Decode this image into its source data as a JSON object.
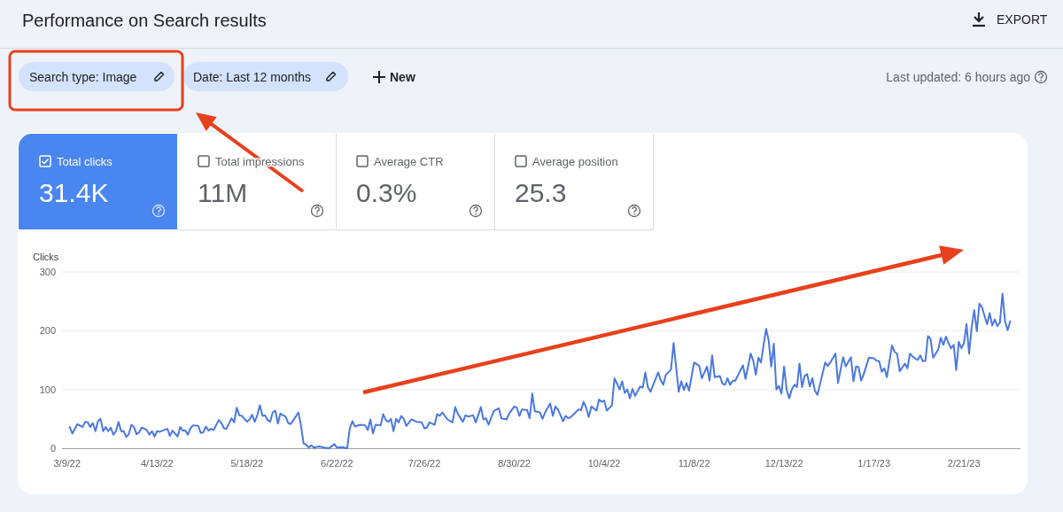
{
  "chart_data": {
    "type": "line",
    "title": "Performance on Search results",
    "ylabel": "Clicks",
    "annotations": [
      "EXPORT",
      "Search type: Image",
      "Date: Last 12 months",
      "New",
      "Last updated: 6 hours ago",
      "Total clicks",
      "31.4K",
      "Total impressions",
      "11M",
      "Average CTR",
      "0.3%",
      "Average position",
      "25.3"
    ],
    "xlim": [
      "2022-03-07",
      "2023-03-15"
    ],
    "xticks": [
      {
        "value": "2022-03-09",
        "label": "3/9/22"
      },
      {
        "value": "2022-04-13",
        "label": "4/13/22"
      },
      {
        "value": "2022-05-18",
        "label": "5/18/22"
      },
      {
        "value": "2022-06-22",
        "label": "6/22/22"
      },
      {
        "value": "2022-07-26",
        "label": "7/26/22"
      },
      {
        "value": "2022-08-30",
        "label": "8/30/22"
      },
      {
        "value": "2022-10-04",
        "label": "10/4/22"
      },
      {
        "value": "2022-11-08",
        "label": "11/8/22"
      },
      {
        "value": "2022-12-13",
        "label": "12/13/22"
      },
      {
        "value": "2023-01-17",
        "label": "1/17/23"
      },
      {
        "value": "2023-02-21",
        "label": "2/21/23"
      }
    ],
    "ylim": [
      0,
      300
    ],
    "yticks": [
      0,
      100,
      200,
      300
    ],
    "grid": "y",
    "marker": "none",
    "line_style": "solid",
    "x": [
      "2022-03-10",
      "2022-03-11",
      "2022-03-13",
      "2022-03-15",
      "2022-03-16",
      "2022-03-17",
      "2022-03-18",
      "2022-03-19",
      "2022-03-20",
      "2022-03-21",
      "2022-03-22",
      "2022-03-23",
      "2022-03-24",
      "2022-03-25",
      "2022-03-26",
      "2022-03-27",
      "2022-03-28",
      "2022-03-29",
      "2022-03-30",
      "2022-03-31",
      "2022-04-01",
      "2022-04-02",
      "2022-04-03",
      "2022-04-04",
      "2022-04-05",
      "2022-04-06",
      "2022-04-07",
      "2022-04-09",
      "2022-04-10",
      "2022-04-11",
      "2022-04-12",
      "2022-04-13",
      "2022-04-14",
      "2022-04-17",
      "2022-04-18",
      "2022-04-19",
      "2022-04-21",
      "2022-04-22",
      "2022-04-23",
      "2022-04-24",
      "2022-04-25",
      "2022-04-26",
      "2022-04-27",
      "2022-04-29",
      "2022-04-30",
      "2022-05-01",
      "2022-05-02",
      "2022-05-03",
      "2022-05-04",
      "2022-05-05",
      "2022-05-07",
      "2022-05-08",
      "2022-05-09",
      "2022-05-10",
      "2022-05-12",
      "2022-05-13",
      "2022-05-14",
      "2022-05-15",
      "2022-05-16",
      "2022-05-18",
      "2022-05-19",
      "2022-05-20",
      "2022-05-21",
      "2022-05-22",
      "2022-05-23",
      "2022-05-24",
      "2022-05-25",
      "2022-05-26",
      "2022-05-27",
      "2022-05-28",
      "2022-05-29",
      "2022-05-30",
      "2022-05-31",
      "2022-06-01",
      "2022-06-02",
      "2022-06-03",
      "2022-06-04",
      "2022-06-06",
      "2022-06-07",
      "2022-06-08",
      "2022-06-09",
      "2022-06-10",
      "2022-06-11",
      "2022-06-12",
      "2022-06-13",
      "2022-06-15",
      "2022-06-17",
      "2022-06-19",
      "2022-06-21",
      "2022-06-22",
      "2022-06-24",
      "2022-06-26",
      "2022-06-27",
      "2022-06-28",
      "2022-06-29",
      "2022-07-01",
      "2022-07-03",
      "2022-07-04",
      "2022-07-05",
      "2022-07-06",
      "2022-07-07",
      "2022-07-09",
      "2022-07-10",
      "2022-07-11",
      "2022-07-12",
      "2022-07-13",
      "2022-07-14",
      "2022-07-15",
      "2022-07-16",
      "2022-07-17",
      "2022-07-18",
      "2022-07-19",
      "2022-07-21",
      "2022-07-23",
      "2022-07-25",
      "2022-07-26",
      "2022-07-27",
      "2022-07-28",
      "2022-07-30",
      "2022-07-31",
      "2022-08-01",
      "2022-08-02",
      "2022-08-04",
      "2022-08-06",
      "2022-08-07",
      "2022-08-08",
      "2022-08-10",
      "2022-08-11",
      "2022-08-12",
      "2022-08-14",
      "2022-08-15",
      "2022-08-17",
      "2022-08-18",
      "2022-08-19",
      "2022-08-20",
      "2022-08-22",
      "2022-08-24",
      "2022-08-25",
      "2022-08-27",
      "2022-08-28",
      "2022-08-30",
      "2022-08-31",
      "2022-09-01",
      "2022-09-02",
      "2022-09-04",
      "2022-09-05",
      "2022-09-06",
      "2022-09-07",
      "2022-09-09",
      "2022-09-10",
      "2022-09-11",
      "2022-09-13",
      "2022-09-14",
      "2022-09-15",
      "2022-09-16",
      "2022-09-18",
      "2022-09-19",
      "2022-09-20",
      "2022-09-21",
      "2022-09-24",
      "2022-09-25",
      "2022-09-26",
      "2022-09-27",
      "2022-09-28",
      "2022-09-29",
      "2022-10-01",
      "2022-10-02",
      "2022-10-03",
      "2022-10-04",
      "2022-10-05",
      "2022-10-07",
      "2022-10-08",
      "2022-10-09",
      "2022-10-10",
      "2022-10-11",
      "2022-10-12",
      "2022-10-13",
      "2022-10-14",
      "2022-10-15",
      "2022-10-16",
      "2022-10-18",
      "2022-10-19",
      "2022-10-20",
      "2022-10-21",
      "2022-10-22",
      "2022-10-25",
      "2022-10-26",
      "2022-10-27",
      "2022-10-28",
      "2022-10-30",
      "2022-10-31",
      "2022-11-02",
      "2022-11-03",
      "2022-11-04",
      "2022-11-05",
      "2022-11-06",
      "2022-11-08",
      "2022-11-10",
      "2022-11-11",
      "2022-11-13",
      "2022-11-14",
      "2022-11-15",
      "2022-11-16",
      "2022-11-18",
      "2022-11-19",
      "2022-11-20",
      "2022-11-21",
      "2022-11-22",
      "2022-11-23",
      "2022-11-24",
      "2022-11-27",
      "2022-11-28",
      "2022-11-30",
      "2022-12-01",
      "2022-12-02",
      "2022-12-03",
      "2022-12-04",
      "2022-12-06",
      "2022-12-07",
      "2022-12-08",
      "2022-12-09",
      "2022-12-10",
      "2022-12-11",
      "2022-12-12",
      "2022-12-13",
      "2022-12-14",
      "2022-12-15",
      "2022-12-16",
      "2022-12-17",
      "2022-12-18",
      "2022-12-19",
      "2022-12-20",
      "2022-12-21",
      "2022-12-22",
      "2022-12-23",
      "2022-12-24",
      "2022-12-25",
      "2022-12-26",
      "2022-12-29",
      "2022-12-30",
      "2022-12-31",
      "2023-01-02",
      "2023-01-03",
      "2023-01-04",
      "2023-01-05",
      "2023-01-06",
      "2023-01-08",
      "2023-01-09",
      "2023-01-10",
      "2023-01-11",
      "2023-01-12",
      "2023-01-13",
      "2023-01-15",
      "2023-01-17",
      "2023-01-18",
      "2023-01-19",
      "2023-01-20",
      "2023-01-21",
      "2023-01-22",
      "2023-01-24",
      "2023-01-25",
      "2023-01-26",
      "2023-01-27",
      "2023-01-29",
      "2023-01-30",
      "2023-01-31",
      "2023-02-01",
      "2023-02-03",
      "2023-02-04",
      "2023-02-05",
      "2023-02-06",
      "2023-02-07",
      "2023-02-08",
      "2023-02-09",
      "2023-02-11",
      "2023-02-12",
      "2023-02-13",
      "2023-02-14",
      "2023-02-15",
      "2023-02-16",
      "2023-02-17",
      "2023-02-18",
      "2023-02-19",
      "2023-02-20",
      "2023-02-21",
      "2023-02-22",
      "2023-02-23",
      "2023-02-24",
      "2023-02-25",
      "2023-02-26",
      "2023-02-27",
      "2023-02-28",
      "2023-03-02",
      "2023-03-03",
      "2023-03-04",
      "2023-03-05",
      "2023-03-06",
      "2023-03-07",
      "2023-03-08",
      "2023-03-09",
      "2023-03-10",
      "2023-03-11"
    ],
    "series": [
      {
        "color": "#4a78e0",
        "values": [
          36,
          25,
          41,
          36,
          45,
          44,
          36,
          43,
          29,
          46,
          50,
          29,
          36,
          29,
          35,
          23,
          29,
          45,
          29,
          29,
          19,
          24,
          40,
          36,
          24,
          27,
          35,
          31,
          23,
          29,
          20,
          29,
          28,
          33,
          21,
          30,
          20,
          36,
          30,
          30,
          23,
          34,
          39,
          38,
          26,
          27,
          37,
          30,
          33,
          31,
          48,
          43,
          34,
          33,
          51,
          44,
          69,
          56,
          55,
          45,
          49,
          57,
          45,
          56,
          73,
          55,
          56,
          48,
          45,
          61,
          64,
          42,
          59,
          56,
          54,
          43,
          41,
          54,
          61,
          39,
          8,
          6,
          1,
          5,
          1,
          3,
          1,
          0,
          7,
          1,
          2,
          0,
          34,
          46,
          37,
          40,
          39,
          31,
          49,
          25,
          40,
          39,
          58,
          48,
          45,
          50,
          29,
          50,
          44,
          55,
          50,
          38,
          49,
          45,
          44,
          34,
          35,
          44,
          40,
          58,
          55,
          61,
          49,
          44,
          70,
          59,
          45,
          56,
          54,
          56,
          44,
          70,
          49,
          51,
          40,
          63,
          68,
          51,
          49,
          59,
          71,
          69,
          55,
          66,
          65,
          51,
          93,
          63,
          61,
          50,
          61,
          76,
          55,
          71,
          66,
          46,
          55,
          51,
          53,
          66,
          65,
          79,
          69,
          53,
          71,
          64,
          83,
          79,
          81,
          64,
          73,
          119,
          110,
          100,
          114,
          94,
          100,
          85,
          101,
          89,
          105,
          103,
          129,
          104,
          96,
          129,
          116,
          108,
          125,
          134,
          179,
          96,
          114,
          99,
          111,
          98,
          146,
          140,
          119,
          139,
          115,
          158,
          121,
          123,
          110,
          108,
          119,
          108,
          115,
          115,
          141,
          118,
          161,
          149,
          125,
          154,
          146,
          203,
          184,
          139,
          178,
          100,
          106,
          93,
          139,
          100,
          85,
          100,
          108,
          104,
          144,
          104,
          123,
          126,
          105,
          119,
          98,
          91,
          146,
          140,
          146,
          161,
          111,
          134,
          155,
          139,
          155,
          114,
          139,
          138,
          115,
          126,
          154,
          153,
          149,
          148,
          130,
          136,
          121,
          175,
          164,
          161,
          131,
          144,
          136,
          161,
          156,
          150,
          158,
          148,
          149,
          191,
          186,
          154,
          168,
          188,
          176,
          190,
          179,
          170,
          176,
          133,
          181,
          170,
          179,
          211,
          161,
          206,
          235,
          199,
          246,
          240,
          211,
          230,
          209,
          219,
          208,
          214,
          263,
          216,
          201,
          216
        ]
      }
    ]
  }
}
